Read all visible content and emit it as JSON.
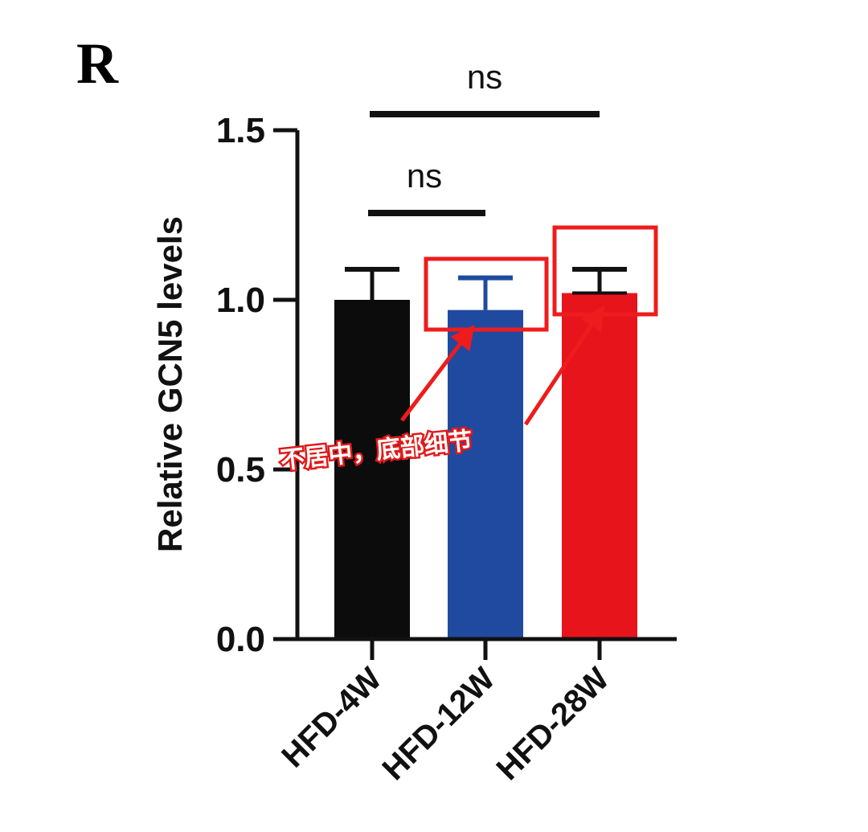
{
  "panel_label": "R",
  "colors": {
    "axis": "#111111",
    "annotation": "#ee1c1c"
  },
  "chart_data": {
    "type": "bar",
    "title": "",
    "xlabel": "",
    "ylabel": "Relative GCN5 levels",
    "ylim": [
      0,
      1.5
    ],
    "yticks": [
      0.0,
      0.5,
      1.0,
      1.5
    ],
    "ytick_labels": [
      "0.0",
      "0.5",
      "1.0",
      "1.5"
    ],
    "categories": [
      "HFD-4W",
      "HFD-12W",
      "HFD-28W"
    ],
    "values": [
      1.0,
      0.97,
      1.02
    ],
    "error": [
      0.09,
      0.095,
      0.07
    ],
    "bar_colors": [
      "#0c0c0c",
      "#1f4aa0",
      "#e8141c"
    ],
    "errorbar_colors": [
      "#111111",
      "#1f4aa0",
      "#111111"
    ],
    "grid": false,
    "significance": [
      {
        "from": "HFD-4W",
        "to": "HFD-12W",
        "label": "ns"
      },
      {
        "from": "HFD-4W",
        "to": "HFD-28W",
        "label": "ns"
      }
    ]
  },
  "annotation": {
    "text": "不居中，底部细节",
    "highlighted_categories": [
      "HFD-12W",
      "HFD-28W"
    ]
  }
}
